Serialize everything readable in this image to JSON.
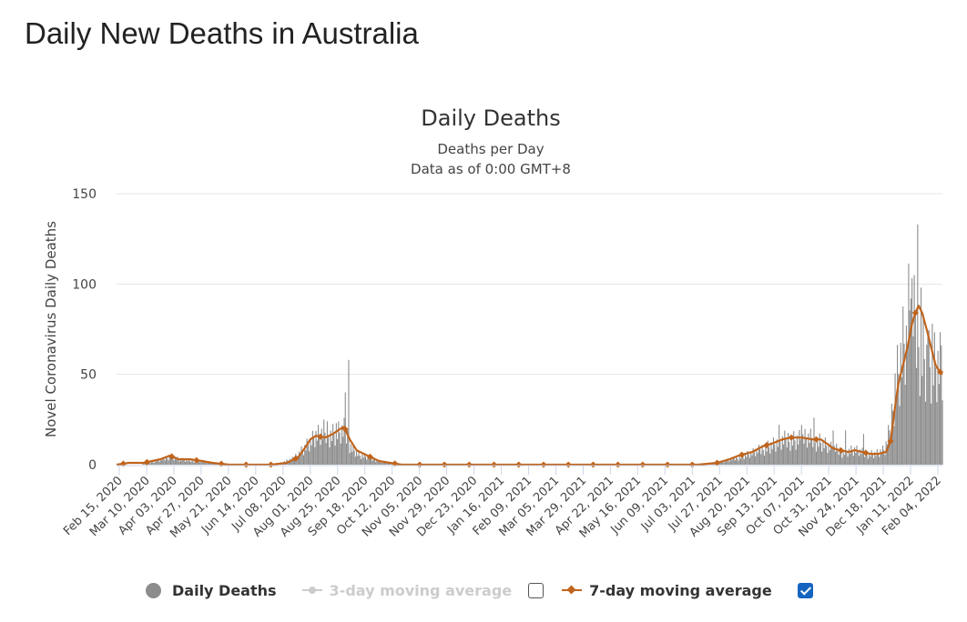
{
  "page": {
    "title": "Daily New Deaths in Australia"
  },
  "legend": {
    "daily_label": "Daily Deaths",
    "ma3_label": "3-day moving average",
    "ma3_checked": false,
    "ma7_label": "7-day moving average",
    "ma7_checked": true
  },
  "colors": {
    "bars": "#8c8c8c",
    "ma7": "#c0641c",
    "ma3": "#cccccc",
    "grid": "#e6e6e6",
    "checkbox": "#1565c0"
  },
  "chart_data": {
    "type": "bar",
    "title": "Daily Deaths",
    "subtitle": [
      "Deaths per Day",
      "Data as of 0:00 GMT+8"
    ],
    "ylabel": "Novel Coronavirus Daily Deaths",
    "xlabel": "",
    "ylim": [
      0,
      150
    ],
    "yticks": [
      0,
      50,
      100,
      150
    ],
    "grid": true,
    "legend_position": "bottom",
    "x_range": [
      "2020-02-15",
      "2022-02-17"
    ],
    "xtick_labels": [
      "Feb 15, 2020",
      "Mar 10, 2020",
      "Apr 03, 2020",
      "Apr 27, 2020",
      "May 21, 2020",
      "Jun 14, 2020",
      "Jul 08, 2020",
      "Aug 01, 2020",
      "Aug 25, 2020",
      "Sep 18, 2020",
      "Oct 12, 2020",
      "Nov 05, 2020",
      "Nov 29, 2020",
      "Dec 23, 2020",
      "Jan 16, 2021",
      "Feb 09, 2021",
      "Mar 05, 2021",
      "Mar 29, 2021",
      "Apr 22, 2021",
      "May 16, 2021",
      "Jun 09, 2021",
      "Jul 03, 2021",
      "Jul 27, 2021",
      "Aug 20, 2021",
      "Sep 13, 2021",
      "Oct 07, 2021",
      "Oct 31, 2021",
      "Nov 24, 2021",
      "Dec 18, 2021",
      "Jan 11, 2022",
      "Feb 04, 2022"
    ],
    "series": [
      {
        "name": "Daily Deaths",
        "style": "bar",
        "anchors": [
          [
            "2020-02-15",
            0
          ],
          [
            "2020-03-01",
            0
          ],
          [
            "2020-03-15",
            1
          ],
          [
            "2020-03-28",
            3
          ],
          [
            "2020-04-03",
            5
          ],
          [
            "2020-04-10",
            3
          ],
          [
            "2020-04-20",
            2
          ],
          [
            "2020-05-01",
            2
          ],
          [
            "2020-05-10",
            1
          ],
          [
            "2020-05-25",
            0
          ],
          [
            "2020-06-15",
            0
          ],
          [
            "2020-07-01",
            0
          ],
          [
            "2020-07-10",
            1
          ],
          [
            "2020-07-20",
            3
          ],
          [
            "2020-08-01",
            10
          ],
          [
            "2020-08-10",
            15
          ],
          [
            "2020-08-20",
            16
          ],
          [
            "2020-08-30",
            17
          ],
          [
            "2020-09-05",
            18
          ],
          [
            "2020-09-10",
            10
          ],
          [
            "2020-09-18",
            5
          ],
          [
            "2020-09-25",
            4
          ],
          [
            "2020-10-05",
            2
          ],
          [
            "2020-10-15",
            1
          ],
          [
            "2020-10-25",
            0
          ],
          [
            "2021-07-20",
            0
          ],
          [
            "2021-08-01",
            1
          ],
          [
            "2021-08-15",
            3
          ],
          [
            "2021-08-25",
            5
          ],
          [
            "2021-09-05",
            7
          ],
          [
            "2021-09-15",
            10
          ],
          [
            "2021-09-25",
            12
          ],
          [
            "2021-10-05",
            14
          ],
          [
            "2021-10-20",
            14
          ],
          [
            "2021-10-31",
            13
          ],
          [
            "2021-11-10",
            9
          ],
          [
            "2021-11-20",
            7
          ],
          [
            "2021-12-01",
            8
          ],
          [
            "2021-12-10",
            6
          ],
          [
            "2021-12-20",
            6
          ],
          [
            "2021-12-28",
            8
          ],
          [
            "2022-01-02",
            20
          ],
          [
            "2022-01-06",
            45
          ],
          [
            "2022-01-10",
            55
          ],
          [
            "2022-01-15",
            70
          ],
          [
            "2022-01-20",
            85
          ],
          [
            "2022-01-25",
            75
          ],
          [
            "2022-01-30",
            65
          ],
          [
            "2022-02-04",
            55
          ],
          [
            "2022-02-10",
            52
          ],
          [
            "2022-02-17",
            50
          ]
        ],
        "spikes": [
          [
            "2020-09-08",
            58
          ],
          [
            "2020-09-05",
            40
          ],
          [
            "2020-08-28",
            23
          ],
          [
            "2020-08-20",
            24
          ],
          [
            "2020-08-17",
            25
          ],
          [
            "2021-10-15",
            22
          ],
          [
            "2021-10-26",
            26
          ],
          [
            "2021-11-12",
            19
          ],
          [
            "2021-11-23",
            19
          ],
          [
            "2021-12-09",
            17
          ],
          [
            "2021-09-25",
            22
          ],
          [
            "2022-01-16",
            77
          ],
          [
            "2022-01-20",
            92
          ],
          [
            "2022-01-23",
            105
          ],
          [
            "2022-01-26",
            133
          ],
          [
            "2022-01-29",
            98
          ],
          [
            "2022-02-04",
            71
          ],
          [
            "2022-02-08",
            78
          ],
          [
            "2022-02-13",
            63
          ],
          [
            "2022-02-16",
            66
          ]
        ]
      },
      {
        "name": "7-day moving average",
        "style": "line",
        "points": [
          [
            "2020-02-15",
            0
          ],
          [
            "2020-02-26",
            1
          ],
          [
            "2020-03-10",
            1
          ],
          [
            "2020-03-25",
            3
          ],
          [
            "2020-04-02",
            5
          ],
          [
            "2020-04-10",
            3
          ],
          [
            "2020-04-20",
            3
          ],
          [
            "2020-05-01",
            2
          ],
          [
            "2020-05-10",
            1
          ],
          [
            "2020-05-25",
            0
          ],
          [
            "2020-07-01",
            0
          ],
          [
            "2020-07-15",
            1
          ],
          [
            "2020-07-25",
            4
          ],
          [
            "2020-08-01",
            10
          ],
          [
            "2020-08-05",
            14
          ],
          [
            "2020-08-10",
            16
          ],
          [
            "2020-08-18",
            15
          ],
          [
            "2020-08-25",
            17
          ],
          [
            "2020-09-01",
            20
          ],
          [
            "2020-09-04",
            21
          ],
          [
            "2020-09-09",
            14
          ],
          [
            "2020-09-15",
            8
          ],
          [
            "2020-09-25",
            5
          ],
          [
            "2020-10-05",
            2
          ],
          [
            "2020-10-15",
            1
          ],
          [
            "2020-10-25",
            0
          ],
          [
            "2021-07-15",
            0
          ],
          [
            "2021-08-01",
            1
          ],
          [
            "2021-08-12",
            3
          ],
          [
            "2021-08-20",
            5
          ],
          [
            "2021-09-01",
            7
          ],
          [
            "2021-09-10",
            10
          ],
          [
            "2021-09-20",
            12
          ],
          [
            "2021-09-28",
            14
          ],
          [
            "2021-10-05",
            15
          ],
          [
            "2021-10-15",
            15
          ],
          [
            "2021-10-25",
            14
          ],
          [
            "2021-11-01",
            14
          ],
          [
            "2021-11-08",
            11
          ],
          [
            "2021-11-12",
            9
          ],
          [
            "2021-11-18",
            8
          ],
          [
            "2021-11-26",
            7
          ],
          [
            "2021-12-01",
            8
          ],
          [
            "2021-12-08",
            7
          ],
          [
            "2021-12-15",
            6
          ],
          [
            "2021-12-22",
            6
          ],
          [
            "2021-12-29",
            7
          ],
          [
            "2022-01-02",
            13
          ],
          [
            "2022-01-06",
            32
          ],
          [
            "2022-01-09",
            45
          ],
          [
            "2022-01-13",
            55
          ],
          [
            "2022-01-17",
            65
          ],
          [
            "2022-01-21",
            78
          ],
          [
            "2022-01-24",
            84
          ],
          [
            "2022-01-27",
            88
          ],
          [
            "2022-01-30",
            84
          ],
          [
            "2022-02-03",
            75
          ],
          [
            "2022-02-07",
            65
          ],
          [
            "2022-02-11",
            55
          ],
          [
            "2022-02-14",
            52
          ],
          [
            "2022-02-17",
            50
          ]
        ],
        "marker_dates": [
          "2020-02-21",
          "2020-03-13",
          "2020-04-04",
          "2020-04-26",
          "2020-05-18",
          "2020-06-09",
          "2020-07-01",
          "2020-07-23",
          "2020-08-14",
          "2020-09-05",
          "2020-09-27",
          "2020-10-19",
          "2020-11-10",
          "2020-12-02",
          "2020-12-24",
          "2021-01-15",
          "2021-02-06",
          "2021-02-28",
          "2021-03-22",
          "2021-04-13",
          "2021-05-05",
          "2021-05-27",
          "2021-06-18",
          "2021-07-10",
          "2021-08-01",
          "2021-08-23",
          "2021-09-14",
          "2021-10-06",
          "2021-10-28",
          "2021-11-19",
          "2021-12-11",
          "2022-01-02",
          "2022-01-24",
          "2022-02-15"
        ]
      }
    ]
  }
}
